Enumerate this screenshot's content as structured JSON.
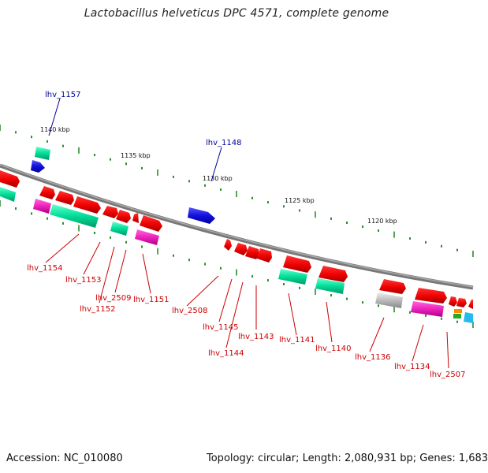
{
  "title": "Lactobacillus helveticus DPC 4571, complete genome",
  "footer": {
    "accession": "Accession: NC_010080",
    "stats": "Topology: circular; Length: 2,080,931 bp; Genes: 1,683"
  },
  "scale_labels": [
    "1140 kbp",
    "1135 kbp",
    "1130 kbp",
    "1125 kbp",
    "1120 kbp"
  ],
  "highlight_labels": [
    "lhv_1157",
    "lhv_1148"
  ],
  "gene_labels": [
    "lhv_1154",
    "lhv_1153",
    "lhv_2509",
    "lhv_1152",
    "lhv_1151",
    "lhv_2508",
    "lhv_1145",
    "lhv_1144",
    "lhv_1143",
    "lhv_1141",
    "lhv_1140",
    "lhv_1136",
    "lhv_1134",
    "lhv_2507"
  ],
  "colors": {
    "backbone": "#888888",
    "gene_red": "#ee0000",
    "gene_teal": "#00cc88",
    "gene_magenta": "#dd22aa",
    "gene_blue": "#1111dd",
    "gene_grey": "#bbbbbb",
    "tick_green": "#2e8b2e",
    "label_blue": "#000099",
    "label_red": "#cc0000"
  }
}
